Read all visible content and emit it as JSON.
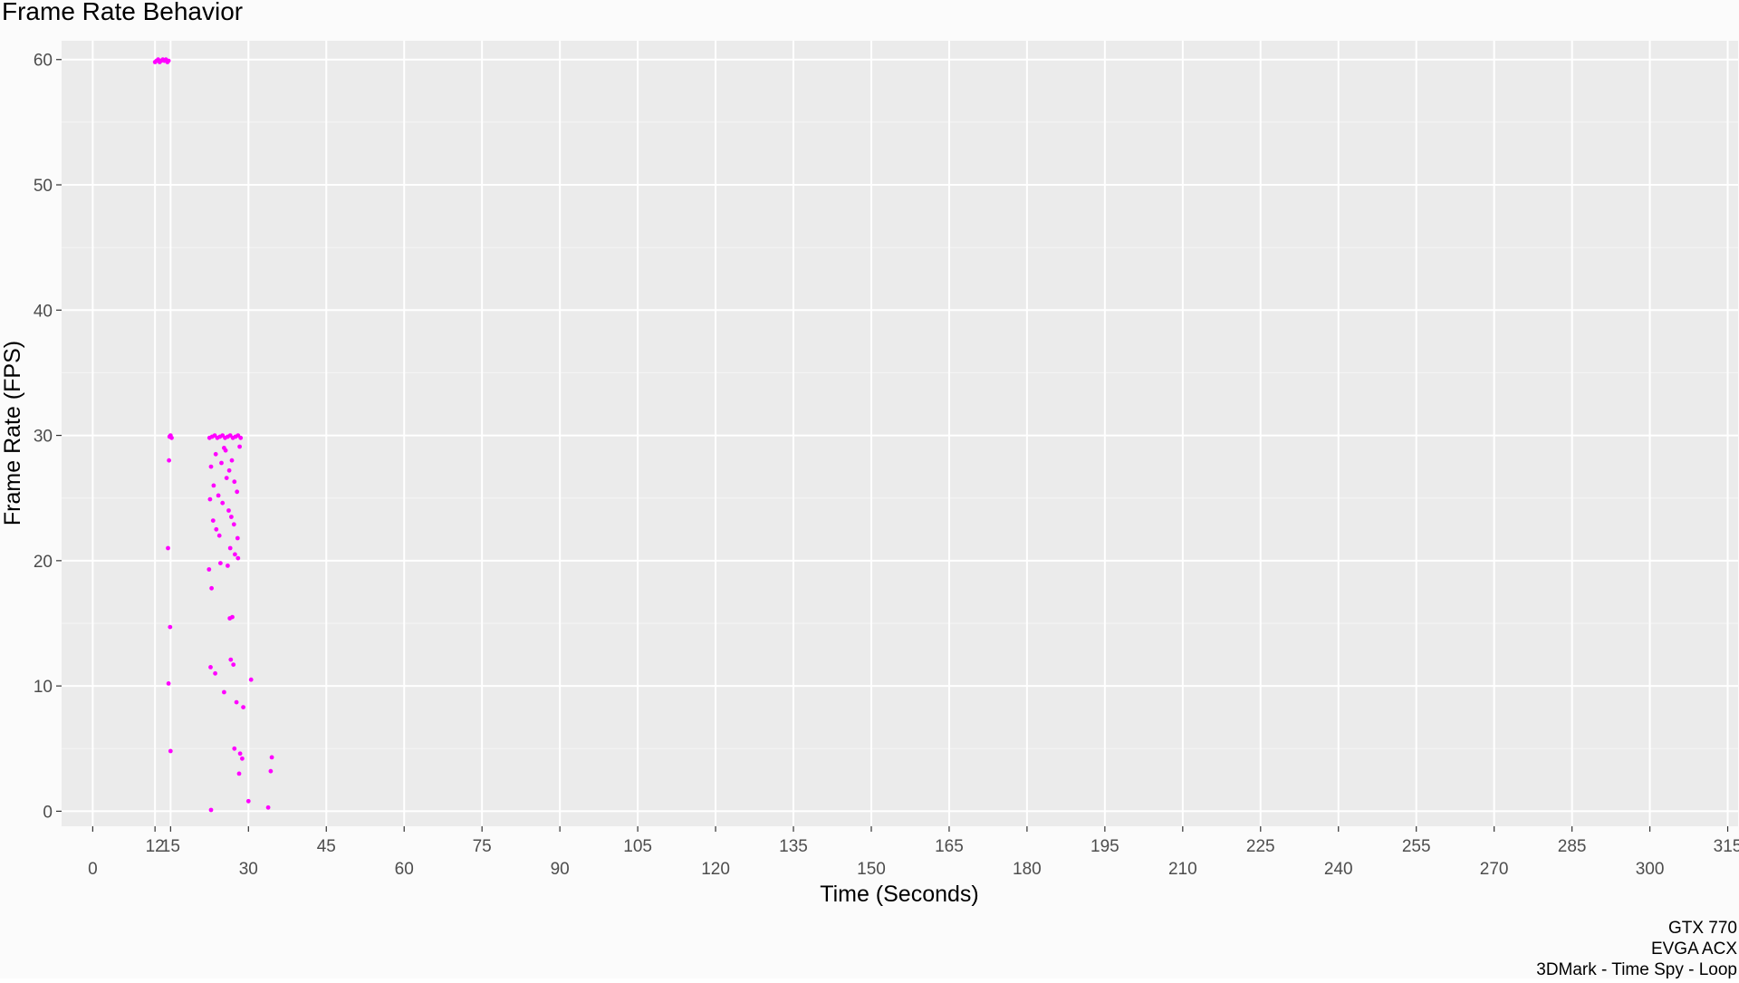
{
  "chart_data": {
    "type": "scatter",
    "title": "Frame Rate Behavior",
    "xlabel": "Time (Seconds)",
    "ylabel": "Frame Rate (FPS)",
    "xlim": [
      -6,
      317
    ],
    "ylim": [
      -1.2,
      61.5
    ],
    "x_ticks": [
      0,
      12,
      15,
      30,
      45,
      60,
      75,
      90,
      105,
      120,
      135,
      150,
      165,
      180,
      195,
      210,
      225,
      240,
      255,
      270,
      285,
      300,
      315
    ],
    "y_ticks": [
      0,
      10,
      20,
      30,
      40,
      50,
      60
    ],
    "grid": true,
    "legend": "none",
    "point_color": "#FF00FF",
    "panel_color": "#EBEBEB",
    "caption_lines": [
      "GTX 770",
      "EVGA ACX",
      "3DMark - Time Spy - Loop"
    ],
    "series": [
      {
        "points": [
          [
            12.0,
            59.8
          ],
          [
            12.3,
            59.9
          ],
          [
            12.6,
            60.0
          ],
          [
            12.9,
            59.8
          ],
          [
            13.2,
            59.9
          ],
          [
            13.5,
            60.0
          ],
          [
            13.8,
            59.9
          ],
          [
            14.1,
            60.0
          ],
          [
            14.4,
            59.8
          ],
          [
            14.6,
            59.9
          ],
          [
            14.8,
            29.9
          ],
          [
            15.0,
            30.0
          ],
          [
            15.2,
            29.8
          ],
          [
            14.5,
            21.0
          ],
          [
            14.7,
            28.0
          ],
          [
            14.9,
            14.7
          ],
          [
            14.6,
            10.2
          ],
          [
            15.0,
            4.8
          ],
          [
            22.5,
            29.8
          ],
          [
            23.0,
            29.9
          ],
          [
            23.5,
            30.0
          ],
          [
            24.0,
            29.8
          ],
          [
            24.5,
            29.9
          ],
          [
            25.0,
            30.0
          ],
          [
            25.5,
            29.8
          ],
          [
            26.0,
            29.9
          ],
          [
            26.5,
            30.0
          ],
          [
            27.0,
            29.8
          ],
          [
            27.5,
            29.9
          ],
          [
            28.0,
            30.0
          ],
          [
            28.5,
            29.8
          ],
          [
            22.8,
            27.5
          ],
          [
            23.3,
            26.0
          ],
          [
            23.7,
            28.5
          ],
          [
            24.2,
            25.2
          ],
          [
            24.8,
            27.8
          ],
          [
            25.3,
            29.0
          ],
          [
            25.8,
            26.6
          ],
          [
            26.3,
            27.2
          ],
          [
            26.8,
            28.0
          ],
          [
            27.3,
            26.3
          ],
          [
            27.8,
            25.5
          ],
          [
            28.3,
            29.1
          ],
          [
            22.6,
            24.9
          ],
          [
            23.2,
            23.2
          ],
          [
            23.8,
            22.5
          ],
          [
            24.4,
            22.0
          ],
          [
            25.0,
            24.6
          ],
          [
            25.6,
            28.8
          ],
          [
            26.2,
            24.0
          ],
          [
            26.7,
            23.5
          ],
          [
            27.2,
            22.9
          ],
          [
            27.9,
            21.8
          ],
          [
            22.4,
            19.3
          ],
          [
            22.9,
            17.8
          ],
          [
            24.6,
            19.8
          ],
          [
            26.0,
            19.6
          ],
          [
            26.5,
            21.0
          ],
          [
            27.4,
            20.5
          ],
          [
            28.0,
            20.2
          ],
          [
            22.7,
            11.5
          ],
          [
            23.6,
            11.0
          ],
          [
            25.3,
            9.5
          ],
          [
            26.4,
            15.4
          ],
          [
            26.9,
            15.5
          ],
          [
            26.6,
            12.1
          ],
          [
            27.1,
            11.7
          ],
          [
            27.7,
            8.7
          ],
          [
            29.0,
            8.3
          ],
          [
            27.3,
            5.0
          ],
          [
            28.4,
            4.6
          ],
          [
            28.8,
            4.2
          ],
          [
            28.2,
            3.0
          ],
          [
            30.0,
            0.8
          ],
          [
            22.8,
            0.1
          ],
          [
            30.5,
            10.5
          ],
          [
            34.5,
            4.3
          ],
          [
            34.3,
            3.2
          ],
          [
            33.8,
            0.3
          ]
        ]
      }
    ]
  }
}
